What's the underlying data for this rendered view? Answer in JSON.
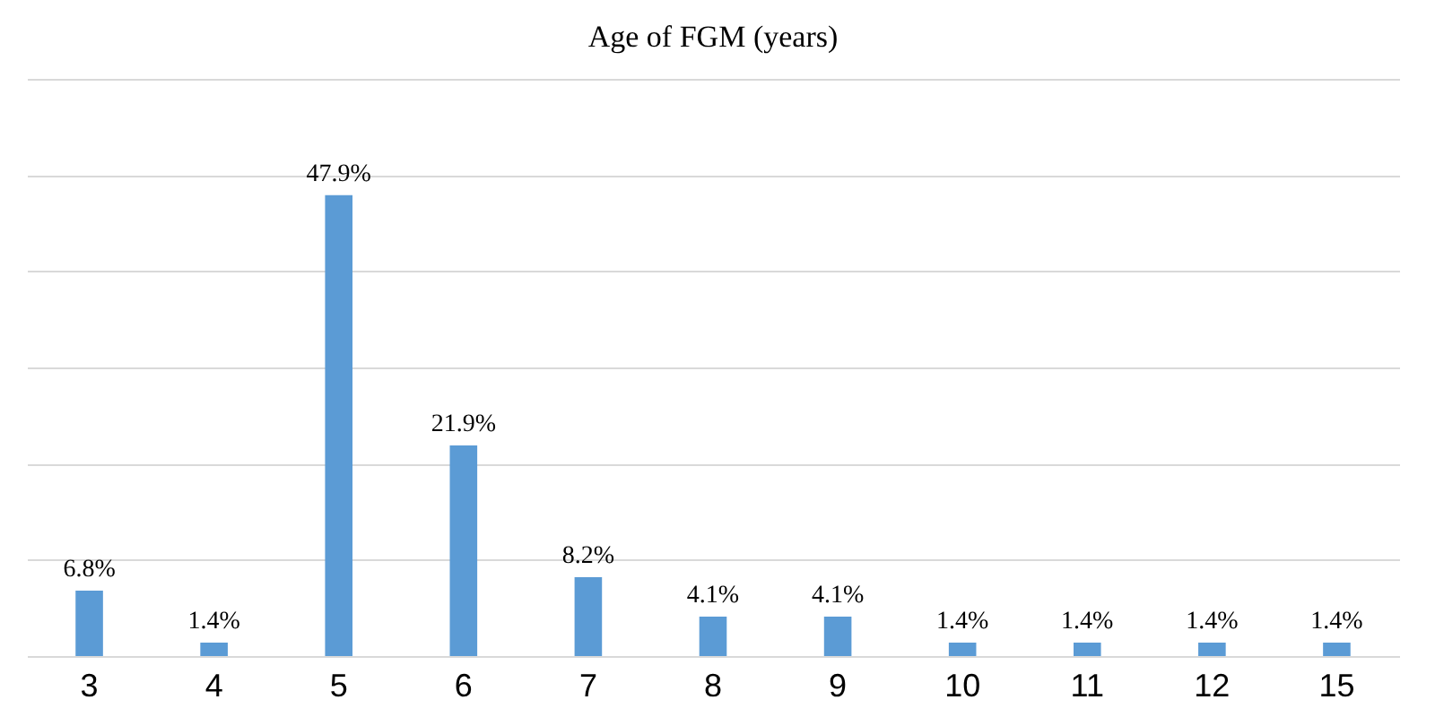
{
  "chart_data": {
    "type": "bar",
    "title": "Age of FGM (years)",
    "categories": [
      "3",
      "4",
      "5",
      "6",
      "7",
      "8",
      "9",
      "10",
      "11",
      "12",
      "15"
    ],
    "values": [
      6.8,
      1.4,
      47.9,
      21.9,
      8.2,
      4.1,
      4.1,
      1.4,
      1.4,
      1.4,
      1.4
    ],
    "value_labels": [
      "6.8%",
      "1.4%",
      "47.9%",
      "21.9%",
      "8.2%",
      "4.1%",
      "4.1%",
      "1.4%",
      "1.4%",
      "1.4%",
      "1.4%"
    ],
    "color": "#5b9bd5",
    "ylim": [
      0,
      60
    ],
    "yticks": [
      {
        "value": 0,
        "label": null
      },
      {
        "value": 10,
        "label": null
      },
      {
        "value": 20,
        "label": null
      },
      {
        "value": 30,
        "label": null
      },
      {
        "value": 40,
        "label": null
      },
      {
        "value": 50,
        "label": null
      },
      {
        "value": 60,
        "label": null
      }
    ],
    "tick_labels": "x",
    "grid": "y"
  }
}
